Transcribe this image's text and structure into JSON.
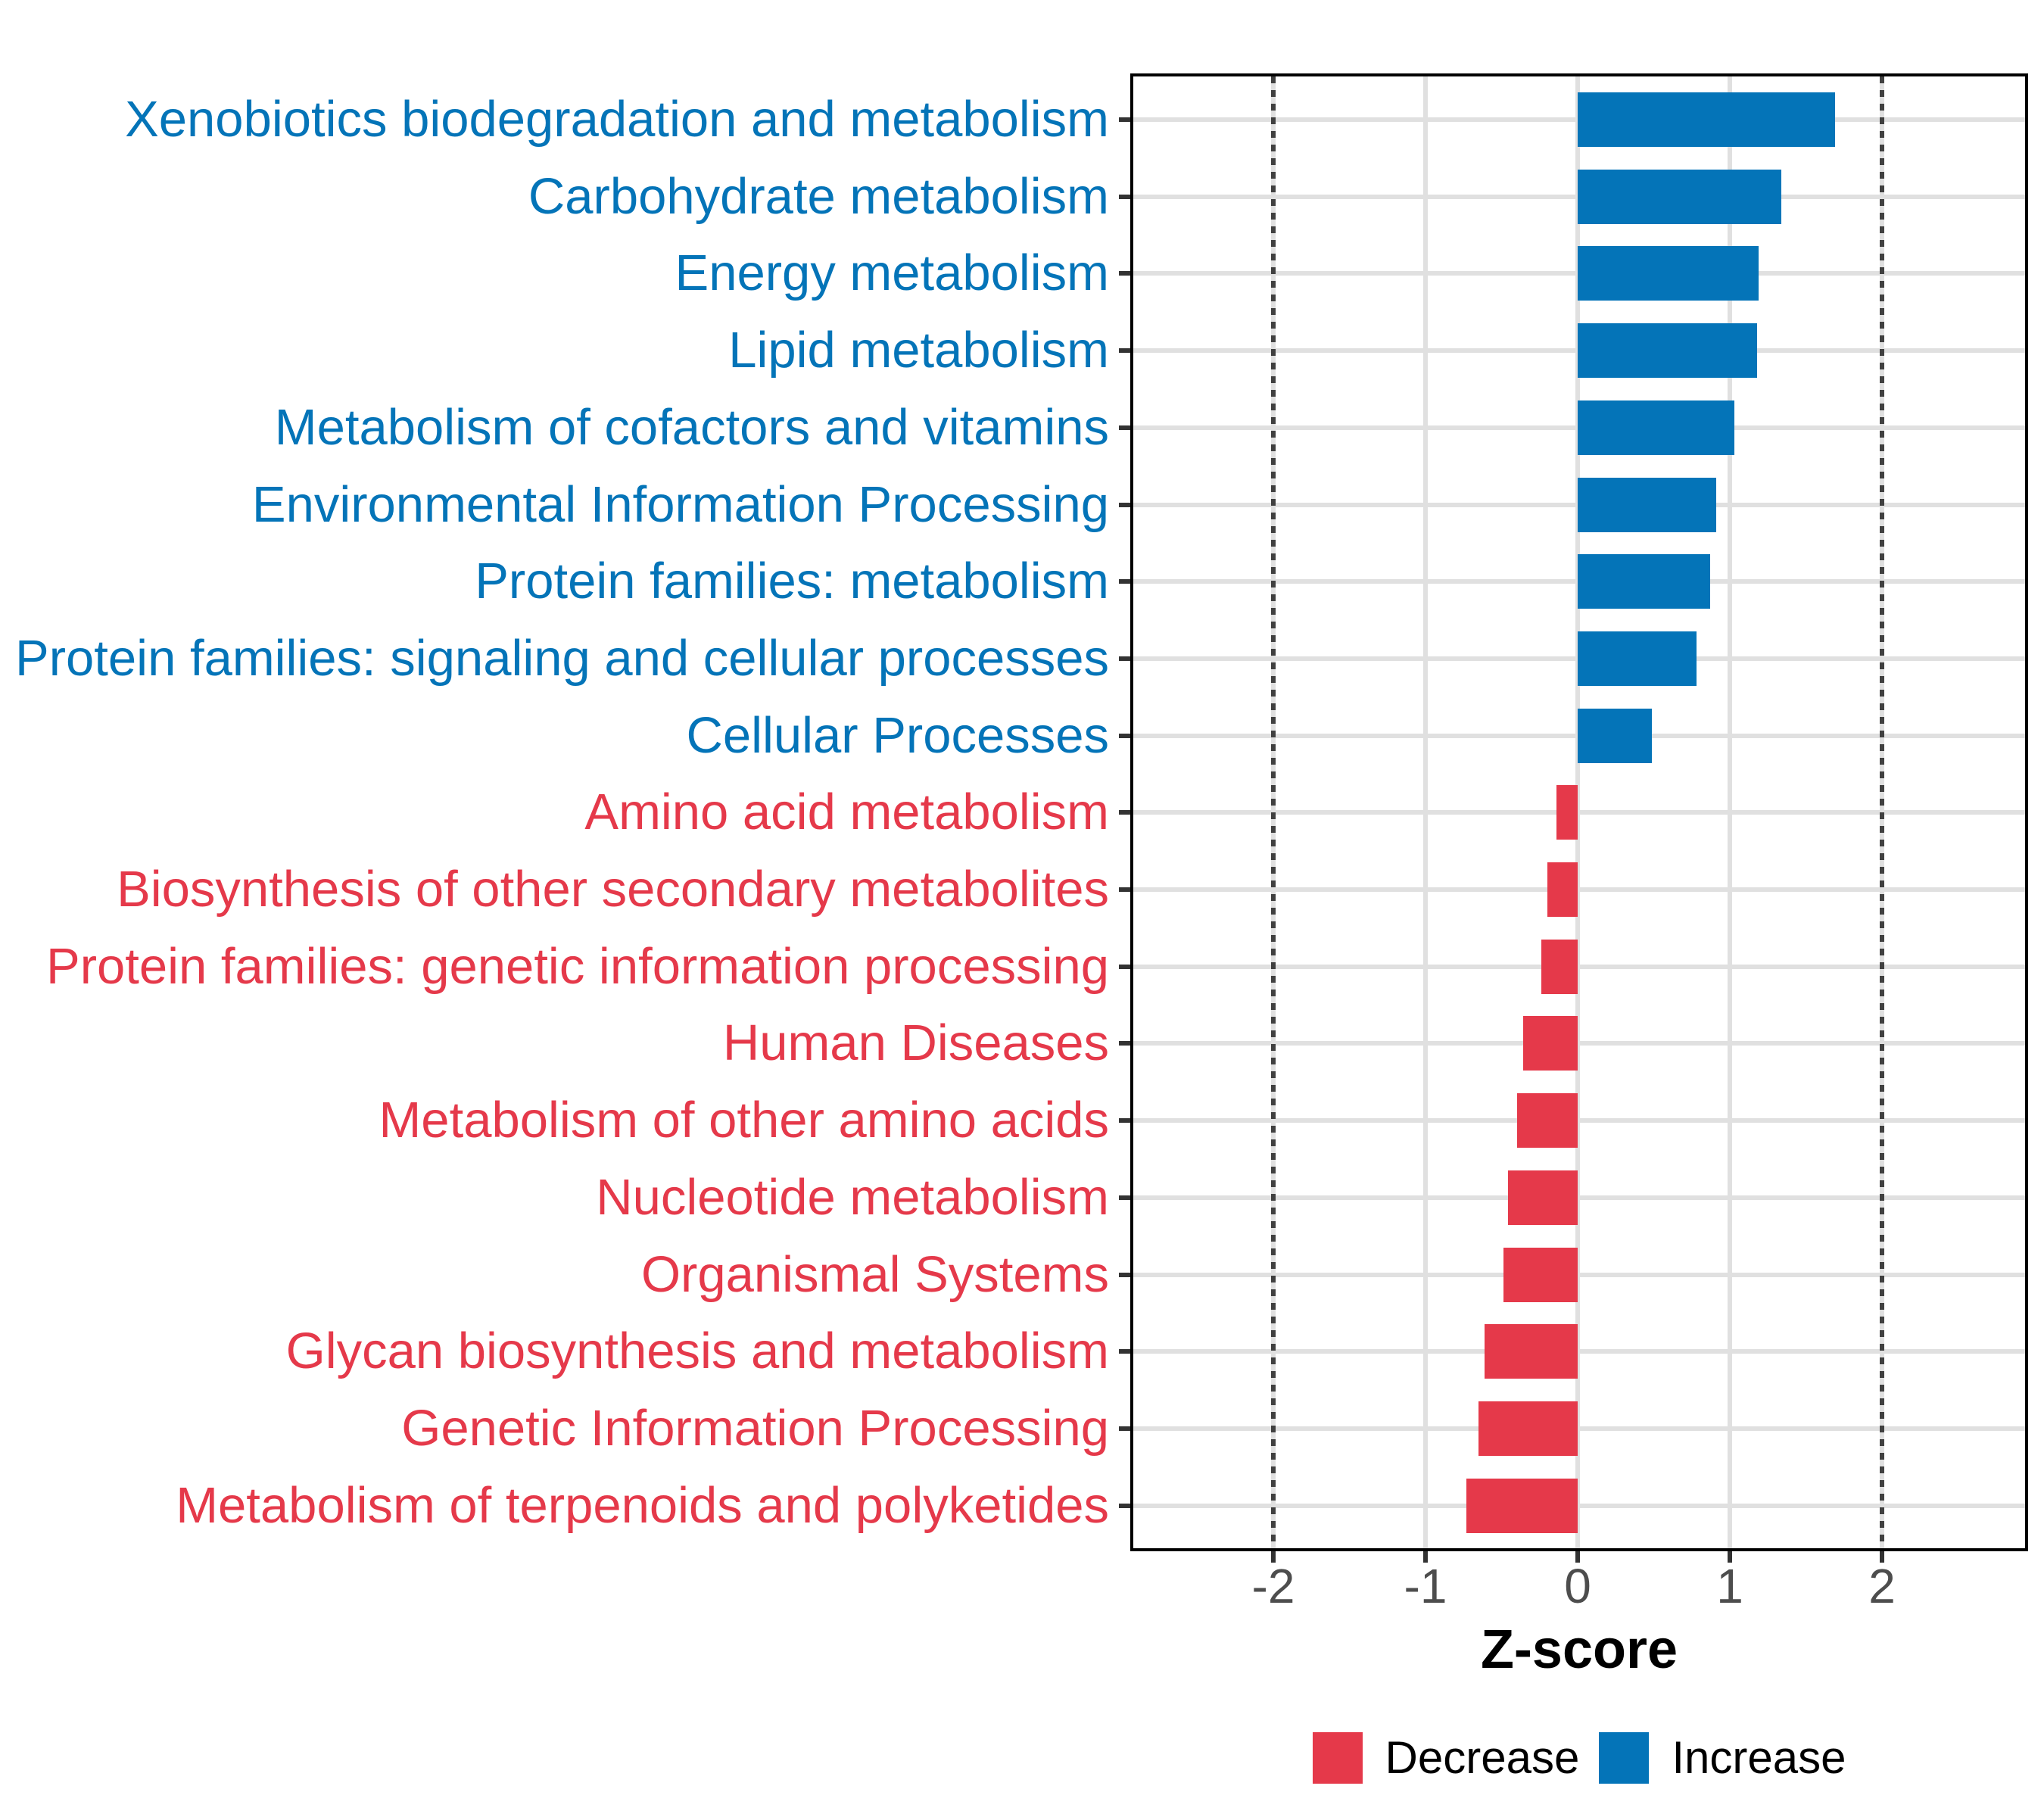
{
  "colors": {
    "increase": "#0474B8",
    "decrease": "#E5394A",
    "grid": "#E0E0E0",
    "axis_text": "#4D4D4D",
    "ref_line": "#404040",
    "panel_border": "#000000",
    "tick_mark": "#333333"
  },
  "chart_data": {
    "type": "bar",
    "orientation": "horizontal",
    "title": "",
    "xlabel": "Z-score",
    "ylabel": "",
    "xlim": [
      -2.93,
      2.93
    ],
    "x_ticks": [
      -2,
      -1,
      0,
      1,
      2
    ],
    "x_tick_labels": [
      "-2",
      "-1",
      "0",
      "1",
      "2"
    ],
    "grid": "major",
    "reference_lines": [
      -2,
      2
    ],
    "legend_position": "bottom",
    "legend": [
      {
        "label": "Decrease",
        "group": "decrease"
      },
      {
        "label": "Increase",
        "group": "increase"
      }
    ],
    "bars": [
      {
        "label": "Xenobiotics biodegradation and metabolism",
        "value": 1.69,
        "group": "increase"
      },
      {
        "label": "Carbohydrate metabolism",
        "value": 1.34,
        "group": "increase"
      },
      {
        "label": "Energy metabolism",
        "value": 1.19,
        "group": "increase"
      },
      {
        "label": "Lipid metabolism",
        "value": 1.18,
        "group": "increase"
      },
      {
        "label": "Metabolism of cofactors and vitamins",
        "value": 1.03,
        "group": "increase"
      },
      {
        "label": "Environmental Information Processing",
        "value": 0.91,
        "group": "increase"
      },
      {
        "label": "Protein families: metabolism",
        "value": 0.87,
        "group": "increase"
      },
      {
        "label": "Protein families: signaling and cellular processes",
        "value": 0.78,
        "group": "increase"
      },
      {
        "label": "Cellular Processes",
        "value": 0.49,
        "group": "increase"
      },
      {
        "label": "Amino acid metabolism",
        "value": -0.14,
        "group": "decrease"
      },
      {
        "label": "Biosynthesis of other secondary metabolites",
        "value": -0.2,
        "group": "decrease"
      },
      {
        "label": "Protein families: genetic information processing",
        "value": -0.24,
        "group": "decrease"
      },
      {
        "label": "Human Diseases",
        "value": -0.36,
        "group": "decrease"
      },
      {
        "label": "Metabolism of other amino acids",
        "value": -0.4,
        "group": "decrease"
      },
      {
        "label": "Nucleotide metabolism",
        "value": -0.46,
        "group": "decrease"
      },
      {
        "label": "Organismal Systems",
        "value": -0.49,
        "group": "decrease"
      },
      {
        "label": "Glycan biosynthesis and metabolism",
        "value": -0.61,
        "group": "decrease"
      },
      {
        "label": "Genetic Information Processing",
        "value": -0.65,
        "group": "decrease"
      },
      {
        "label": "Metabolism of terpenoids and polyketides",
        "value": -0.73,
        "group": "decrease"
      }
    ]
  }
}
